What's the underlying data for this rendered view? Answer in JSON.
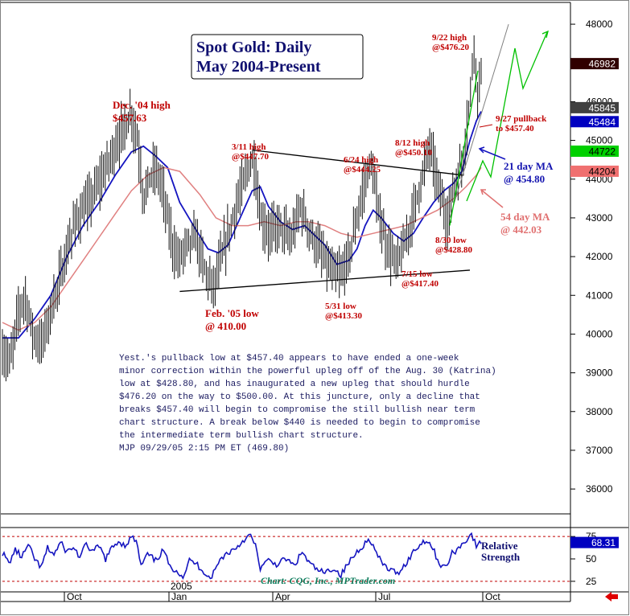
{
  "chart_data": [
    {
      "type": "candlestick",
      "title": "Spot Gold: Daily",
      "subtitle": "May 2004-Present",
      "ylim": [
        35400,
        48500
      ],
      "y_ticks": [
        "48000",
        "47000",
        "46000",
        "45000",
        "44000",
        "43000",
        "42000",
        "41000",
        "40000",
        "39000",
        "38000",
        "37000",
        "36000"
      ],
      "x_ticks": [
        "Oct",
        "Jan",
        "Apr",
        "Jul",
        "Oct"
      ],
      "x_year_label": "2005",
      "price_path": [
        [
          0,
          39500
        ],
        [
          10,
          39300
        ],
        [
          20,
          40600
        ],
        [
          28,
          41000
        ],
        [
          38,
          40000
        ],
        [
          48,
          39700
        ],
        [
          60,
          40600
        ],
        [
          75,
          41700
        ],
        [
          90,
          42900
        ],
        [
          105,
          43300
        ],
        [
          120,
          43900
        ],
        [
          135,
          44600
        ],
        [
          150,
          45300
        ],
        [
          160,
          45700
        ],
        [
          168,
          45000
        ],
        [
          175,
          43500
        ],
        [
          182,
          44000
        ],
        [
          190,
          44300
        ],
        [
          198,
          43800
        ],
        [
          210,
          42400
        ],
        [
          218,
          41900
        ],
        [
          228,
          42300
        ],
        [
          240,
          42500
        ],
        [
          252,
          41600
        ],
        [
          262,
          41200
        ],
        [
          275,
          42200
        ],
        [
          290,
          43300
        ],
        [
          305,
          44300
        ],
        [
          312,
          44500
        ],
        [
          320,
          43000
        ],
        [
          330,
          42600
        ],
        [
          345,
          42800
        ],
        [
          358,
          42400
        ],
        [
          370,
          43300
        ],
        [
          382,
          42600
        ],
        [
          395,
          42100
        ],
        [
          408,
          41600
        ],
        [
          420,
          41500
        ],
        [
          430,
          42000
        ],
        [
          440,
          43000
        ],
        [
          452,
          44100
        ],
        [
          458,
          44400
        ],
        [
          465,
          43300
        ],
        [
          475,
          42400
        ],
        [
          488,
          41800
        ],
        [
          498,
          42200
        ],
        [
          508,
          43000
        ],
        [
          520,
          44000
        ],
        [
          530,
          44900
        ],
        [
          540,
          43900
        ],
        [
          552,
          42900
        ],
        [
          560,
          43800
        ],
        [
          570,
          44300
        ],
        [
          580,
          46000
        ],
        [
          585,
          47500
        ],
        [
          590,
          46200
        ],
        [
          596,
          46980
        ]
      ],
      "series": [
        {
          "name": "21 day MA",
          "color": "#1515c0",
          "points": [
            [
              0,
              39900
            ],
            [
              20,
              39900
            ],
            [
              40,
              40400
            ],
            [
              60,
              41000
            ],
            [
              80,
              42000
            ],
            [
              100,
              42800
            ],
            [
              120,
              43400
            ],
            [
              140,
              44100
            ],
            [
              160,
              44700
            ],
            [
              175,
              44850
            ],
            [
              190,
              44600
            ],
            [
              205,
              44300
            ],
            [
              220,
              43400
            ],
            [
              240,
              42700
            ],
            [
              255,
              42200
            ],
            [
              268,
              42100
            ],
            [
              280,
              42300
            ],
            [
              295,
              43000
            ],
            [
              310,
              43700
            ],
            [
              320,
              43800
            ],
            [
              330,
              43300
            ],
            [
              345,
              42900
            ],
            [
              360,
              42700
            ],
            [
              375,
              42800
            ],
            [
              385,
              42600
            ],
            [
              400,
              42300
            ],
            [
              415,
              41800
            ],
            [
              430,
              41900
            ],
            [
              440,
              42200
            ],
            [
              450,
              42800
            ],
            [
              460,
              43200
            ],
            [
              470,
              43000
            ],
            [
              485,
              42600
            ],
            [
              498,
              42400
            ],
            [
              510,
              42600
            ],
            [
              522,
              43000
            ],
            [
              535,
              43400
            ],
            [
              548,
              43700
            ],
            [
              560,
              43900
            ],
            [
              570,
              44200
            ],
            [
              580,
              45000
            ],
            [
              588,
              45500
            ],
            [
              594,
              45750
            ]
          ]
        },
        {
          "name": "54 day MA",
          "color": "#e08080",
          "points": [
            [
              0,
              40300
            ],
            [
              20,
              40100
            ],
            [
              40,
              40300
            ],
            [
              60,
              40700
            ],
            [
              80,
              41300
            ],
            [
              100,
              41900
            ],
            [
              120,
              42500
            ],
            [
              140,
              43100
            ],
            [
              160,
              43700
            ],
            [
              180,
              44100
            ],
            [
              200,
              44300
            ],
            [
              220,
              44200
            ],
            [
              245,
              43600
            ],
            [
              265,
              43000
            ],
            [
              285,
              42800
            ],
            [
              305,
              42800
            ],
            [
              325,
              42900
            ],
            [
              345,
              42800
            ],
            [
              365,
              42900
            ],
            [
              380,
              42900
            ],
            [
              400,
              42800
            ],
            [
              420,
              42600
            ],
            [
              440,
              42500
            ],
            [
              460,
              42600
            ],
            [
              480,
              42700
            ],
            [
              500,
              42800
            ],
            [
              520,
              43000
            ],
            [
              540,
              43200
            ],
            [
              560,
              43500
            ],
            [
              575,
              43800
            ],
            [
              588,
              44100
            ],
            [
              594,
              44300
            ]
          ]
        }
      ],
      "trendlines": {
        "triangle_upper": [
          [
            310,
            44750
          ],
          [
            572,
            44100
          ]
        ],
        "triangle_lower": [
          [
            220,
            41100
          ],
          [
            580,
            41650
          ]
        ],
        "upper_channel": [
          [
            555,
            43000
          ],
          [
            628,
            48000
          ]
        ],
        "green_channel": [
          [
            555,
            42800
          ],
          [
            590,
            46800
          ]
        ]
      },
      "price_tags": [
        {
          "label": "46982",
          "value": 46982,
          "bg": "#300000",
          "fg": "#ffffff"
        },
        {
          "label": "45845",
          "value": 45845,
          "bg": "#404040",
          "fg": "#ffffff"
        },
        {
          "label": "45484",
          "value": 45484,
          "bg": "#0000c0",
          "fg": "#ffffff"
        },
        {
          "label": "44722",
          "value": 44722,
          "bg": "#00d000",
          "fg": "#000000"
        },
        {
          "label": "44204",
          "value": 44204,
          "bg": "#f07070",
          "fg": "#000000"
        }
      ],
      "annotations": [
        {
          "lines": [
            "9/22 high",
            "@$476.20"
          ],
          "style": "red"
        },
        {
          "lines": [
            "Dec. '04 high",
            "$457.63"
          ],
          "style": "red-big"
        },
        {
          "lines": [
            "3/11 high",
            "@$447.70"
          ],
          "style": "red"
        },
        {
          "lines": [
            "6/24 high",
            "@$444.25"
          ],
          "style": "red"
        },
        {
          "lines": [
            "8/12 high",
            "@$450.10"
          ],
          "style": "red"
        },
        {
          "lines": [
            "9/27 pullback",
            "to $457.40"
          ],
          "style": "red"
        },
        {
          "lines": [
            "21 day MA",
            "@ 454.80"
          ],
          "style": "blue"
        },
        {
          "lines": [
            "54 day MA",
            "@ 442.03"
          ],
          "style": "pink"
        },
        {
          "lines": [
            "8/30 low",
            "@$428.80"
          ],
          "style": "red"
        },
        {
          "lines": [
            "7/15 low",
            "@$417.40"
          ],
          "style": "red"
        },
        {
          "lines": [
            "5/31 low",
            "@$413.30"
          ],
          "style": "red"
        },
        {
          "lines": [
            "Feb. '05 low",
            "@ 410.00"
          ],
          "style": "red-big"
        }
      ],
      "commentary": [
        "Yest.'s pullback low at $457.40 appears to have ended a one-week",
        "minor correction within the powerful upleg off of the Aug. 30 (Katrina)",
        "low at $428.80, and has inaugurated a new upleg that should hurdle",
        "$476.20 on the way to $500.00. At this juncture, only a decline that",
        "breaks $457.40 will begin to compromise the still bullish near term",
        "chart structure. A break below $440 is needed to begin to compromise",
        "the intermediate term bullish chart structure.",
        "MJP 09/29/05  2:15 PM ET (469.80)"
      ]
    },
    {
      "type": "line",
      "name": "Relative Strength",
      "label_lines": [
        "Relative",
        "Strength"
      ],
      "ylim": [
        15,
        85
      ],
      "y_ticks": [
        "75",
        "50",
        "25"
      ],
      "current_tag": "68.31",
      "points": [
        [
          0,
          57
        ],
        [
          8,
          45
        ],
        [
          16,
          60
        ],
        [
          24,
          52
        ],
        [
          32,
          65
        ],
        [
          40,
          50
        ],
        [
          48,
          40
        ],
        [
          56,
          62
        ],
        [
          64,
          55
        ],
        [
          72,
          68
        ],
        [
          80,
          58
        ],
        [
          88,
          63
        ],
        [
          96,
          52
        ],
        [
          104,
          66
        ],
        [
          112,
          58
        ],
        [
          120,
          64
        ],
        [
          128,
          50
        ],
        [
          136,
          62
        ],
        [
          144,
          70
        ],
        [
          152,
          65
        ],
        [
          160,
          74
        ],
        [
          166,
          70
        ],
        [
          172,
          42
        ],
        [
          180,
          55
        ],
        [
          190,
          48
        ],
        [
          200,
          60
        ],
        [
          208,
          40
        ],
        [
          216,
          38
        ],
        [
          224,
          30
        ],
        [
          232,
          48
        ],
        [
          240,
          45
        ],
        [
          250,
          36
        ],
        [
          258,
          28
        ],
        [
          264,
          38
        ],
        [
          272,
          52
        ],
        [
          282,
          58
        ],
        [
          292,
          64
        ],
        [
          300,
          72
        ],
        [
          308,
          76
        ],
        [
          314,
          64
        ],
        [
          320,
          40
        ],
        [
          330,
          48
        ],
        [
          340,
          44
        ],
        [
          352,
          50
        ],
        [
          362,
          42
        ],
        [
          372,
          58
        ],
        [
          380,
          46
        ],
        [
          390,
          38
        ],
        [
          400,
          34
        ],
        [
          410,
          40
        ],
        [
          420,
          32
        ],
        [
          430,
          46
        ],
        [
          440,
          58
        ],
        [
          448,
          66
        ],
        [
          456,
          72
        ],
        [
          462,
          60
        ],
        [
          470,
          46
        ],
        [
          480,
          38
        ],
        [
          490,
          34
        ],
        [
          500,
          44
        ],
        [
          510,
          58
        ],
        [
          518,
          66
        ],
        [
          526,
          72
        ],
        [
          534,
          62
        ],
        [
          542,
          45
        ],
        [
          550,
          40
        ],
        [
          558,
          56
        ],
        [
          566,
          62
        ],
        [
          574,
          70
        ],
        [
          582,
          78
        ],
        [
          588,
          64
        ],
        [
          594,
          68
        ]
      ]
    }
  ],
  "credit": "Chart: CQG, Inc., MPTrader.com"
}
